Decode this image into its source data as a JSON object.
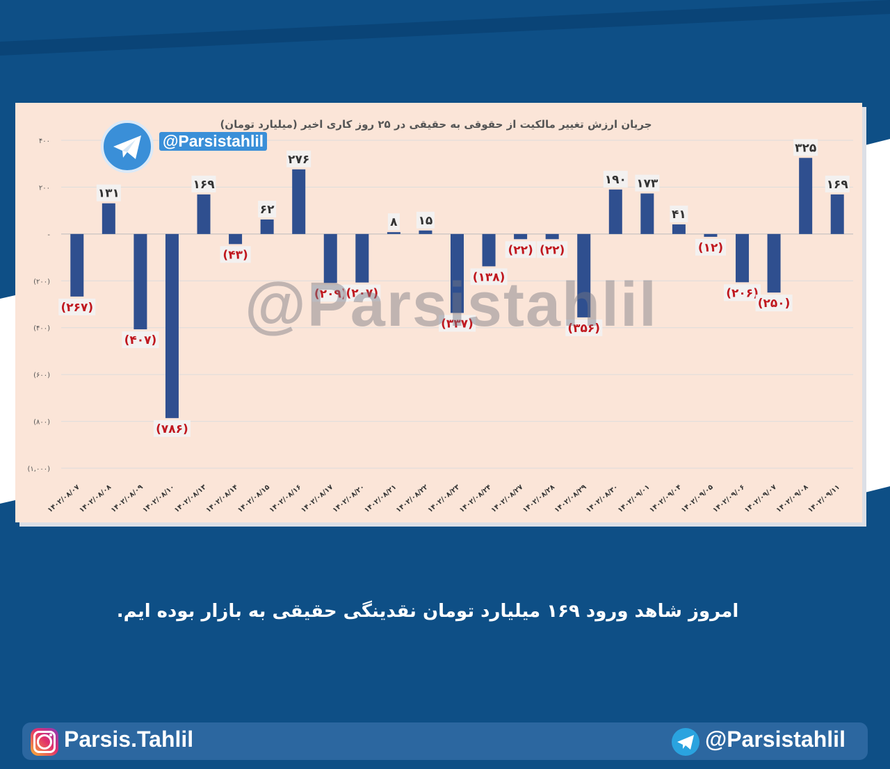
{
  "caption": "امروز شاهد ورود ۱۶۹ میلیارد تومان نقدینگی حقیقی به بازار بوده ایم.",
  "watermark": "@Parsistahlil",
  "logo_handle": "@Parsistahlil",
  "footer": {
    "instagram": "Parsis.Tahlil",
    "telegram": "@Parsistahlil"
  },
  "colors": {
    "bar": "#2f4f8f",
    "negative_label": "#c0181f",
    "background": "#0e4f86",
    "panel": "#fbe5d8"
  },
  "chart_data": {
    "type": "bar",
    "title": "جریان ارزش تغییر مالکیت از حقوقی به حقیقی در ۲۵ روز کاری اخیر (میلیارد تومان)",
    "categories": [
      "۱۴۰۲/۰۸/۰۷",
      "۱۴۰۲/۰۸/۰۸",
      "۱۴۰۲/۰۸/۰۹",
      "۱۴۰۲/۰۸/۱۰",
      "۱۴۰۲/۰۸/۱۳",
      "۱۴۰۲/۰۸/۱۴",
      "۱۴۰۲/۰۸/۱۵",
      "۱۴۰۲/۰۸/۱۶",
      "۱۴۰۲/۰۸/۱۷",
      "۱۴۰۲/۰۸/۲۰",
      "۱۴۰۲/۰۸/۲۱",
      "۱۴۰۲/۰۸/۲۲",
      "۱۴۰۲/۰۸/۲۳",
      "۱۴۰۲/۰۸/۲۴",
      "۱۴۰۲/۰۸/۲۷",
      "۱۴۰۲/۰۸/۲۸",
      "۱۴۰۲/۰۸/۲۹",
      "۱۴۰۲/۰۸/۳۰",
      "۱۴۰۲/۰۹/۰۱",
      "۱۴۰۲/۰۹/۰۴",
      "۱۴۰۲/۰۹/۰۵",
      "۱۴۰۲/۰۹/۰۶",
      "۱۴۰۲/۰۹/۰۷",
      "۱۴۰۲/۰۹/۰۸",
      "۱۴۰۲/۰۹/۱۱"
    ],
    "values": [
      -267,
      131,
      -407,
      -786,
      169,
      -43,
      62,
      276,
      -209,
      -207,
      8,
      15,
      -337,
      -138,
      -22,
      -22,
      -356,
      190,
      173,
      41,
      -12,
      -206,
      -250,
      325,
      169
    ],
    "value_labels": [
      "(۲۶۷)",
      "۱۳۱",
      "(۴۰۷)",
      "(۷۸۶)",
      "۱۶۹",
      "(۴۳)",
      "۶۲",
      "۲۷۶",
      "(۲۰۹)",
      "(۲۰۷)",
      "۸",
      "۱۵",
      "(۳۳۷)",
      "(۱۳۸)",
      "(۲۲)",
      "(۲۲)",
      "(۳۵۶)",
      "۱۹۰",
      "۱۷۳",
      "۴۱",
      "(۱۲)",
      "(۲۰۶)",
      "(۲۵۰)",
      "۳۲۵",
      "۱۶۹"
    ],
    "yticks": [
      400,
      200,
      0,
      -200,
      -400,
      -600,
      -800,
      -1000
    ],
    "ytick_labels": [
      "۴۰۰",
      "۲۰۰",
      "-",
      "(۲۰۰)",
      "(۴۰۰)",
      "(۶۰۰)",
      "(۸۰۰)",
      "(۱,۰۰۰)"
    ],
    "ylim": [
      -1000,
      400
    ],
    "grid": true,
    "xlabel": "",
    "ylabel": ""
  }
}
